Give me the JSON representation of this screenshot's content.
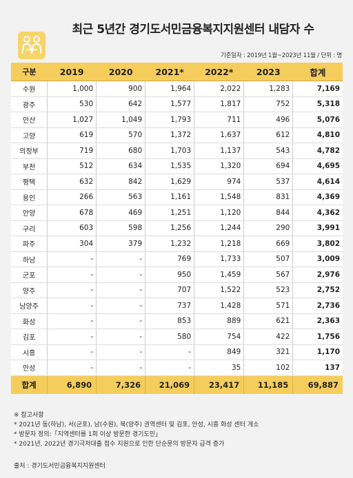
{
  "title": "최근 5년간 경기도서민금융복지지원센터 내담자 수",
  "meta": "기준일자 : 2019년 1월~2023년 11월 / 단위 : 명",
  "headers": [
    "구분",
    "2019",
    "2020",
    "2021*",
    "2022*",
    "2023",
    "합계"
  ],
  "rows": [
    [
      "수원",
      "1,000",
      "900",
      "1,964",
      "2,022",
      "1,283",
      "7,169"
    ],
    [
      "광주",
      "530",
      "642",
      "1,577",
      "1,817",
      "752",
      "5,318"
    ],
    [
      "안산",
      "1,027",
      "1,049",
      "1,793",
      "711",
      "496",
      "5,076"
    ],
    [
      "고양",
      "619",
      "570",
      "1,372",
      "1,637",
      "612",
      "4,810"
    ],
    [
      "의정부",
      "719",
      "680",
      "1,703",
      "1,137",
      "543",
      "4,782"
    ],
    [
      "부천",
      "512",
      "634",
      "1,535",
      "1,320",
      "694",
      "4,695"
    ],
    [
      "평택",
      "632",
      "842",
      "1,629",
      "974",
      "537",
      "4,614"
    ],
    [
      "용인",
      "266",
      "563",
      "1,161",
      "1,548",
      "831",
      "4,369"
    ],
    [
      "안양",
      "678",
      "469",
      "1,251",
      "1,120",
      "844",
      "4,362"
    ],
    [
      "구리",
      "603",
      "598",
      "1,256",
      "1,244",
      "290",
      "3,991"
    ],
    [
      "파주",
      "304",
      "379",
      "1,232",
      "1,218",
      "669",
      "3,802"
    ],
    [
      "하남",
      "-",
      "-",
      "769",
      "1,733",
      "507",
      "3,009"
    ],
    [
      "군포",
      "-",
      "-",
      "950",
      "1,459",
      "567",
      "2,976"
    ],
    [
      "양주",
      "-",
      "-",
      "707",
      "1,522",
      "523",
      "2,752"
    ],
    [
      "남양주",
      "-",
      "-",
      "737",
      "1,428",
      "571",
      "2,736"
    ],
    [
      "화성",
      "-",
      "-",
      "853",
      "889",
      "621",
      "2,363"
    ],
    [
      "김포",
      "-",
      "-",
      "580",
      "754",
      "422",
      "1,756"
    ],
    [
      "시흥",
      "-",
      "-",
      "-",
      "849",
      "321",
      "1,170"
    ],
    [
      "안성",
      "-",
      "-",
      "-",
      "35",
      "102",
      "137"
    ]
  ],
  "total": [
    "합계",
    "6,890",
    "7,326",
    "21,069",
    "23,417",
    "11,185",
    "69,887"
  ],
  "notes": [
    "※ 참고사항",
    "* 2021년 동(하남), 서(군포), 남(수원), 북(양주) 권역센터 및 김포, 안성, 시흥 화성 센터 개소",
    "* 방문자 정의:「지역센터를 1회 이상 방문한 경기도민」",
    "* 2021년, 2022년 경기극저대출 접수 지원으로 인한 단순문의 방문자 급격 증가"
  ],
  "source": "출처 : 경기도서민금융복지지원센터",
  "colors": {
    "accent": "#f5cd5c",
    "background": "#f2f2f2"
  },
  "logo_icon": "people-group-icon"
}
